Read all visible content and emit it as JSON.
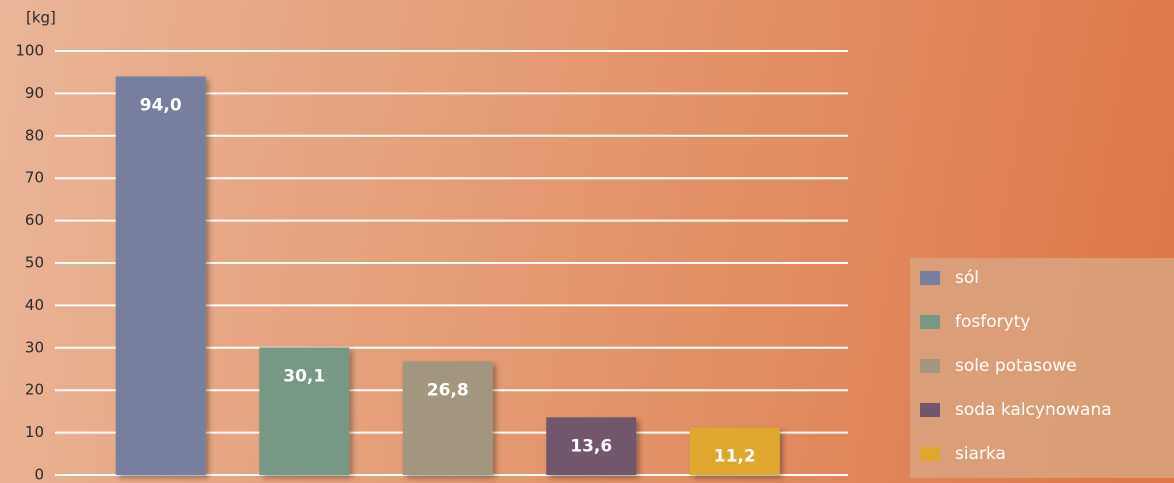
{
  "chart_data": {
    "type": "bar",
    "y_label": "[kg]",
    "categories": [
      "sól",
      "fosforyty",
      "sole potasowe",
      "soda kalcynowana",
      "siarka"
    ],
    "values": [
      94.0,
      30.1,
      26.8,
      13.6,
      11.2
    ],
    "value_labels": [
      "94,0",
      "30,1",
      "26,8",
      "13,6",
      "11,2"
    ],
    "colors": [
      "#787f9e",
      "#789886",
      "#a2977e",
      "#72566c",
      "#e0a72e"
    ],
    "ylim": [
      0,
      100
    ],
    "yticks": [
      0,
      10,
      20,
      30,
      40,
      50,
      60,
      70,
      80,
      90,
      100
    ],
    "grid": true,
    "legend": "right"
  }
}
